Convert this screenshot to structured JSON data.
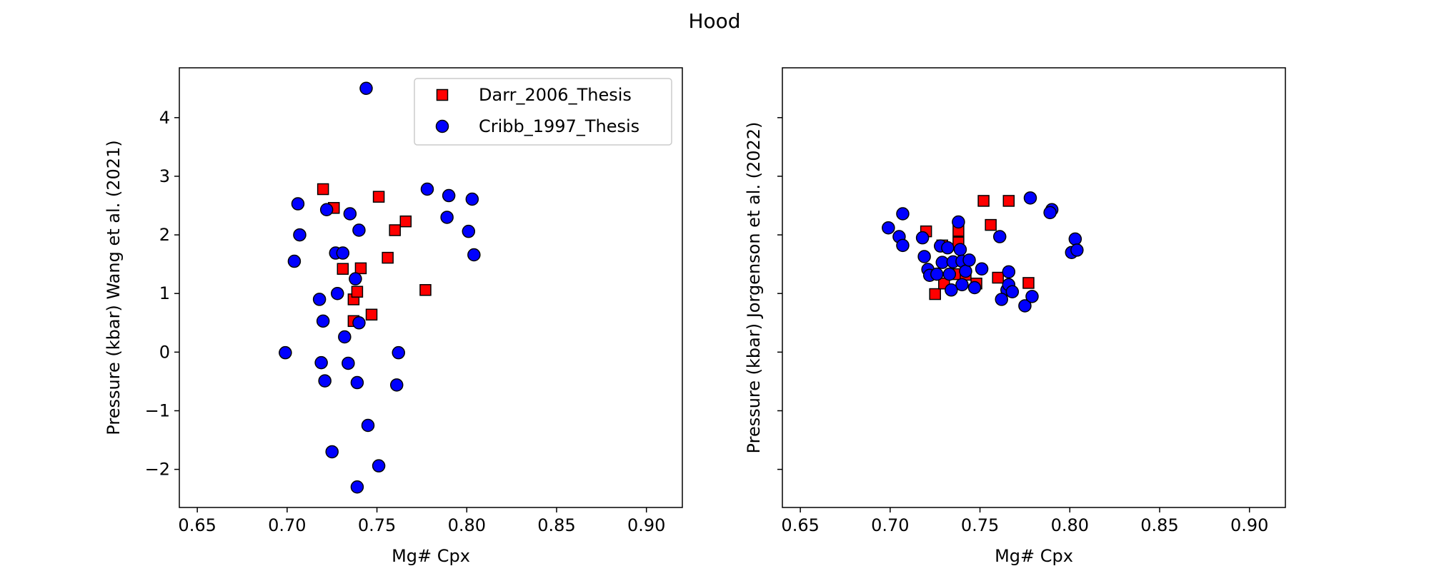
{
  "figure_title": "Hood",
  "colors": {
    "darr": "#ff0000",
    "cribb": "#0000ff",
    "marker_edge": "#000000",
    "background": "#ffffff"
  },
  "chart_data": [
    {
      "type": "scatter",
      "title": "",
      "xlabel": "Mg# Cpx",
      "ylabel": "Pressure (kbar) Wang et al. (2021)",
      "xlim": [
        0.64,
        0.92
      ],
      "ylim": [
        -2.65,
        4.85
      ],
      "xticks": [
        0.65,
        0.7,
        0.75,
        0.8,
        0.85,
        0.9
      ],
      "xtick_labels": [
        "0.65",
        "0.70",
        "0.75",
        "0.80",
        "0.85",
        "0.90"
      ],
      "yticks": [
        -2,
        -1,
        0,
        1,
        2,
        3,
        4
      ],
      "ytick_labels": [
        "−2",
        "−1",
        "0",
        "1",
        "2",
        "3",
        "4"
      ],
      "grid": false,
      "legend": {
        "placement": "top-right",
        "entries": [
          {
            "label": "Darr_2006_Thesis",
            "marker": "square",
            "color": "#ff0000"
          },
          {
            "label": "Cribb_1997_Thesis",
            "marker": "circle",
            "color": "#0000ff"
          }
        ]
      },
      "series": [
        {
          "name": "Darr_2006_Thesis",
          "marker": "square",
          "color": "#ff0000",
          "points": [
            [
              0.72,
              2.78
            ],
            [
              0.726,
              2.46
            ],
            [
              0.731,
              1.42
            ],
            [
              0.741,
              1.43
            ],
            [
              0.737,
              0.9
            ],
            [
              0.737,
              0.53
            ],
            [
              0.739,
              1.03
            ],
            [
              0.747,
              0.64
            ],
            [
              0.751,
              2.65
            ],
            [
              0.756,
              1.61
            ],
            [
              0.76,
              2.08
            ],
            [
              0.766,
              2.23
            ],
            [
              0.777,
              1.06
            ]
          ]
        },
        {
          "name": "Cribb_1997_Thesis",
          "marker": "circle",
          "color": "#0000ff",
          "points": [
            [
              0.744,
              4.5
            ],
            [
              0.706,
              2.53
            ],
            [
              0.707,
              2.0
            ],
            [
              0.704,
              1.55
            ],
            [
              0.722,
              2.43
            ],
            [
              0.735,
              2.36
            ],
            [
              0.74,
              2.08
            ],
            [
              0.727,
              1.69
            ],
            [
              0.731,
              1.69
            ],
            [
              0.738,
              1.25
            ],
            [
              0.718,
              0.9
            ],
            [
              0.728,
              1.0
            ],
            [
              0.72,
              0.53
            ],
            [
              0.74,
              0.5
            ],
            [
              0.732,
              0.26
            ],
            [
              0.699,
              -0.01
            ],
            [
              0.719,
              -0.18
            ],
            [
              0.734,
              -0.19
            ],
            [
              0.721,
              -0.49
            ],
            [
              0.739,
              -0.52
            ],
            [
              0.762,
              -0.01
            ],
            [
              0.761,
              -0.56
            ],
            [
              0.745,
              -1.25
            ],
            [
              0.725,
              -1.7
            ],
            [
              0.751,
              -1.94
            ],
            [
              0.739,
              -2.3
            ],
            [
              0.778,
              2.78
            ],
            [
              0.79,
              2.67
            ],
            [
              0.803,
              2.61
            ],
            [
              0.789,
              2.3
            ],
            [
              0.801,
              2.06
            ],
            [
              0.804,
              1.66
            ]
          ]
        }
      ]
    },
    {
      "type": "scatter",
      "title": "",
      "xlabel": "Mg# Cpx",
      "ylabel": "Pressure (kbar) Jorgenson et al. (2022)",
      "xlim": [
        0.64,
        0.92
      ],
      "ylim": [
        -2.65,
        4.85
      ],
      "xticks": [
        0.65,
        0.7,
        0.75,
        0.8,
        0.85,
        0.9
      ],
      "xtick_labels": [
        "0.65",
        "0.70",
        "0.75",
        "0.80",
        "0.85",
        "0.90"
      ],
      "yticks": [
        -2,
        -1,
        0,
        1,
        2,
        3,
        4
      ],
      "ytick_labels": [],
      "grid": false,
      "series": [
        {
          "name": "Darr_2006_Thesis",
          "marker": "square",
          "color": "#ff0000",
          "points": [
            [
              0.72,
              2.06
            ],
            [
              0.725,
              0.99
            ],
            [
              0.729,
              1.82
            ],
            [
              0.73,
              1.17
            ],
            [
              0.738,
              2.07
            ],
            [
              0.738,
              1.87
            ],
            [
              0.737,
              1.33
            ],
            [
              0.742,
              1.32
            ],
            [
              0.748,
              1.17
            ],
            [
              0.752,
              2.58
            ],
            [
              0.756,
              2.17
            ],
            [
              0.76,
              1.27
            ],
            [
              0.766,
              2.58
            ],
            [
              0.777,
              1.18
            ]
          ]
        },
        {
          "name": "Cribb_1997_Thesis",
          "marker": "circle",
          "color": "#0000ff",
          "points": [
            [
              0.699,
              2.12
            ],
            [
              0.707,
              2.36
            ],
            [
              0.705,
              1.97
            ],
            [
              0.707,
              1.82
            ],
            [
              0.718,
              1.95
            ],
            [
              0.719,
              1.63
            ],
            [
              0.721,
              1.41
            ],
            [
              0.722,
              1.31
            ],
            [
              0.726,
              1.33
            ],
            [
              0.728,
              1.81
            ],
            [
              0.729,
              1.53
            ],
            [
              0.732,
              1.78
            ],
            [
              0.733,
              1.33
            ],
            [
              0.734,
              1.06
            ],
            [
              0.735,
              1.54
            ],
            [
              0.738,
              2.22
            ],
            [
              0.739,
              1.75
            ],
            [
              0.74,
              1.55
            ],
            [
              0.74,
              1.15
            ],
            [
              0.742,
              1.38
            ],
            [
              0.744,
              1.57
            ],
            [
              0.747,
              1.1
            ],
            [
              0.751,
              1.42
            ],
            [
              0.761,
              1.97
            ],
            [
              0.766,
              1.37
            ],
            [
              0.765,
              1.06
            ],
            [
              0.766,
              1.15
            ],
            [
              0.768,
              1.03
            ],
            [
              0.762,
              0.9
            ],
            [
              0.775,
              0.79
            ],
            [
              0.779,
              0.95
            ],
            [
              0.778,
              2.63
            ],
            [
              0.79,
              2.43
            ],
            [
              0.789,
              2.38
            ],
            [
              0.803,
              1.93
            ],
            [
              0.801,
              1.7
            ],
            [
              0.804,
              1.74
            ]
          ]
        }
      ]
    }
  ]
}
